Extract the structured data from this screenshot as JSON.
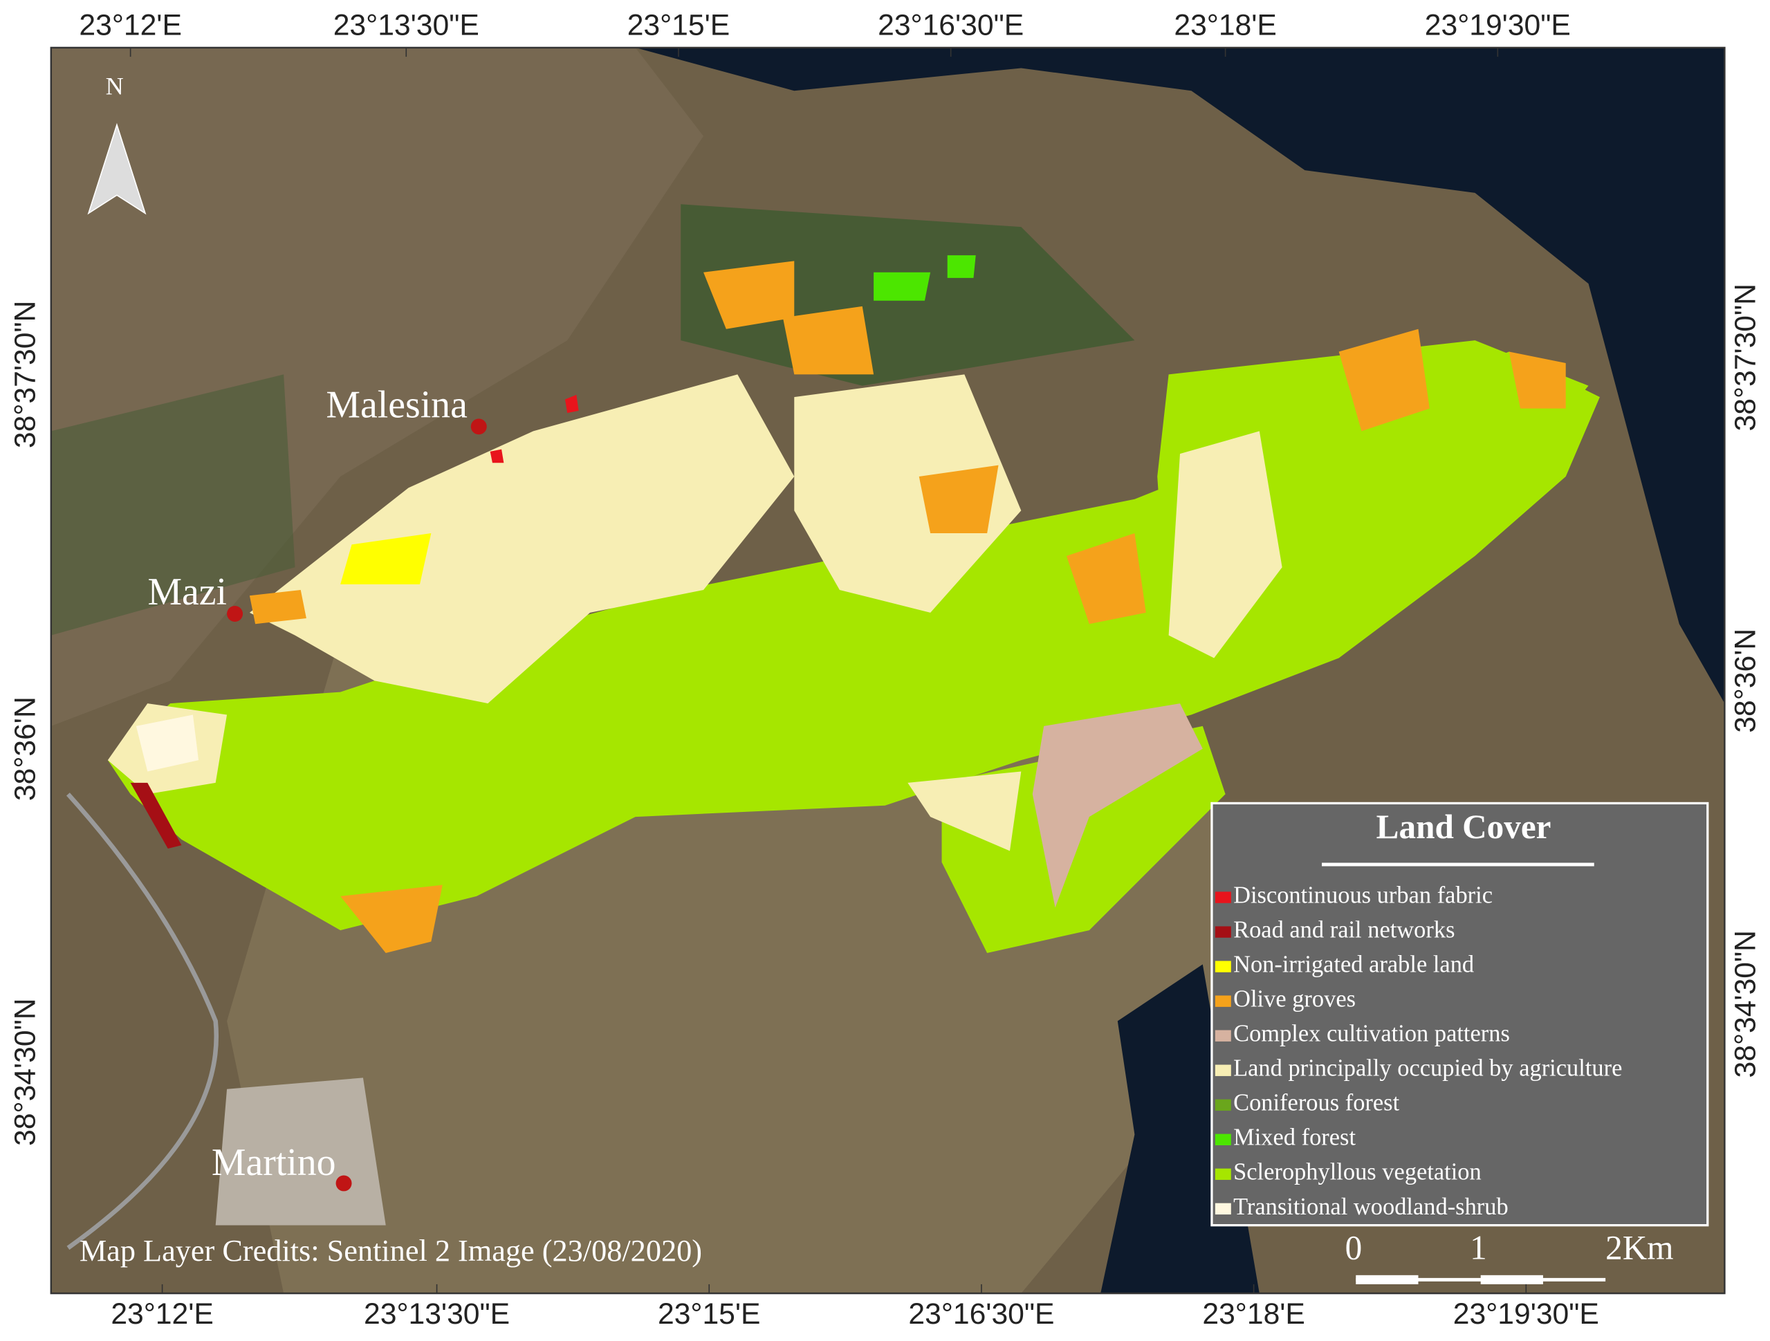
{
  "map": {
    "north": "N",
    "top_labels": [
      "23°12'E",
      "23°13'30\"E",
      "23°15'E",
      "23°16'30\"E",
      "23°18'E",
      "23°19'30\"E"
    ],
    "bottom_labels": [
      "23°12'E",
      "23°13'30\"E",
      "23°15'E",
      "23°16'30\"E",
      "23°18'E",
      "23°19'30\"E"
    ],
    "left_labels": [
      "38°37'30\"N",
      "38°36'N",
      "38°34'30\"N"
    ],
    "right_labels": [
      "38°37'30\"N",
      "38°36'N",
      "38°34'30\"N"
    ],
    "places": [
      "Malesina",
      "Mazi",
      "Martino"
    ],
    "credits": "Map Layer Credits: Sentinel 2 Image (23/08/2020)",
    "scale_labels": [
      "0",
      "1",
      "2Km"
    ]
  },
  "legend": {
    "title": "Land Cover",
    "items": [
      {
        "label": "Discontinuous urban fabric",
        "color": "#e8141c"
      },
      {
        "label": "Road and rail networks",
        "color": "#a50f15"
      },
      {
        "label": "Non-irrigated arable land",
        "color": "#ffff00"
      },
      {
        "label": "Olive groves",
        "color": "#f5a21b"
      },
      {
        "label": "Complex cultivation patterns",
        "color": "#d6b2a0"
      },
      {
        "label": "Land principally occupied by agriculture",
        "color": "#f7eeb4"
      },
      {
        "label": "Coniferous forest",
        "color": "#6aa61c"
      },
      {
        "label": "Mixed forest",
        "color": "#4ce600"
      },
      {
        "label": "Sclerophyllous vegetation",
        "color": "#a6e600"
      },
      {
        "label": "Transitional woodland-shrub",
        "color": "#fff8e0"
      }
    ]
  }
}
